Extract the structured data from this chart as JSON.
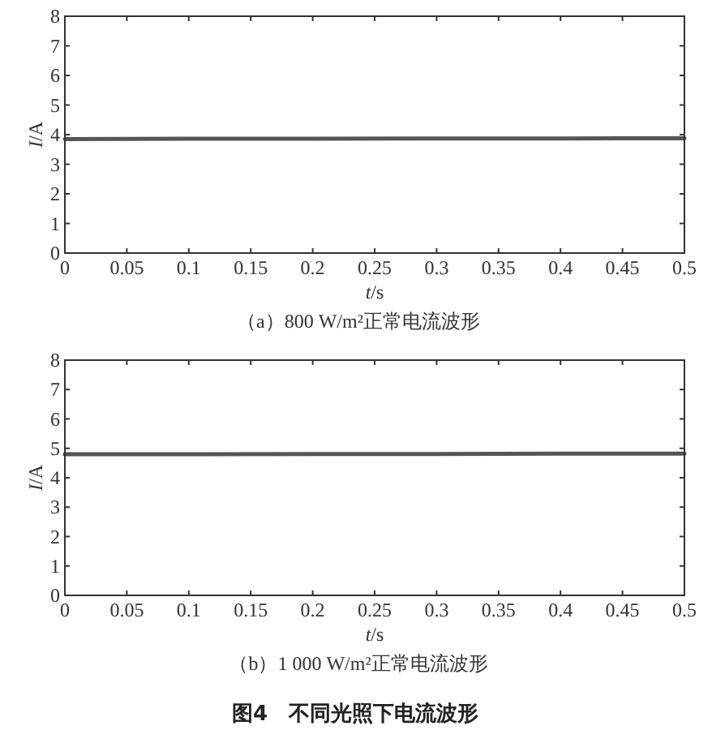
{
  "chart_data": [
    {
      "type": "line",
      "title": "（a）800 W/m²正常电流波形",
      "xlabel": "t/s",
      "ylabel": "I/A",
      "x": [
        0,
        0.1,
        0.2,
        0.3,
        0.4,
        0.5
      ],
      "series": [
        {
          "color": "#555555",
          "values": [
            3.85,
            3.86,
            3.86,
            3.87,
            3.87,
            3.88
          ]
        }
      ],
      "xlim": [
        0,
        0.5
      ],
      "xticks": [
        0,
        0.05,
        0.1,
        0.15,
        0.2,
        0.25,
        0.3,
        0.35,
        0.4,
        0.45,
        0.5
      ],
      "ylim": [
        0,
        8
      ],
      "yticks": [
        0,
        1,
        2,
        3,
        4,
        5,
        6,
        7,
        8
      ],
      "grid": false
    },
    {
      "type": "line",
      "title": "（b）1 000 W/m²正常电流波形",
      "xlabel": "t/s",
      "ylabel": "I/A",
      "x": [
        0,
        0.1,
        0.2,
        0.3,
        0.4,
        0.5
      ],
      "series": [
        {
          "color": "#555555",
          "values": [
            4.8,
            4.8,
            4.81,
            4.81,
            4.82,
            4.82
          ]
        }
      ],
      "xlim": [
        0,
        0.5
      ],
      "xticks": [
        0,
        0.05,
        0.1,
        0.15,
        0.2,
        0.25,
        0.3,
        0.35,
        0.4,
        0.45,
        0.5
      ],
      "ylim": [
        0,
        8
      ],
      "yticks": [
        0,
        1,
        2,
        3,
        4,
        5,
        6,
        7,
        8
      ],
      "grid": false,
      "annotations": [
        "图4　不同光照下电流波形"
      ]
    }
  ]
}
